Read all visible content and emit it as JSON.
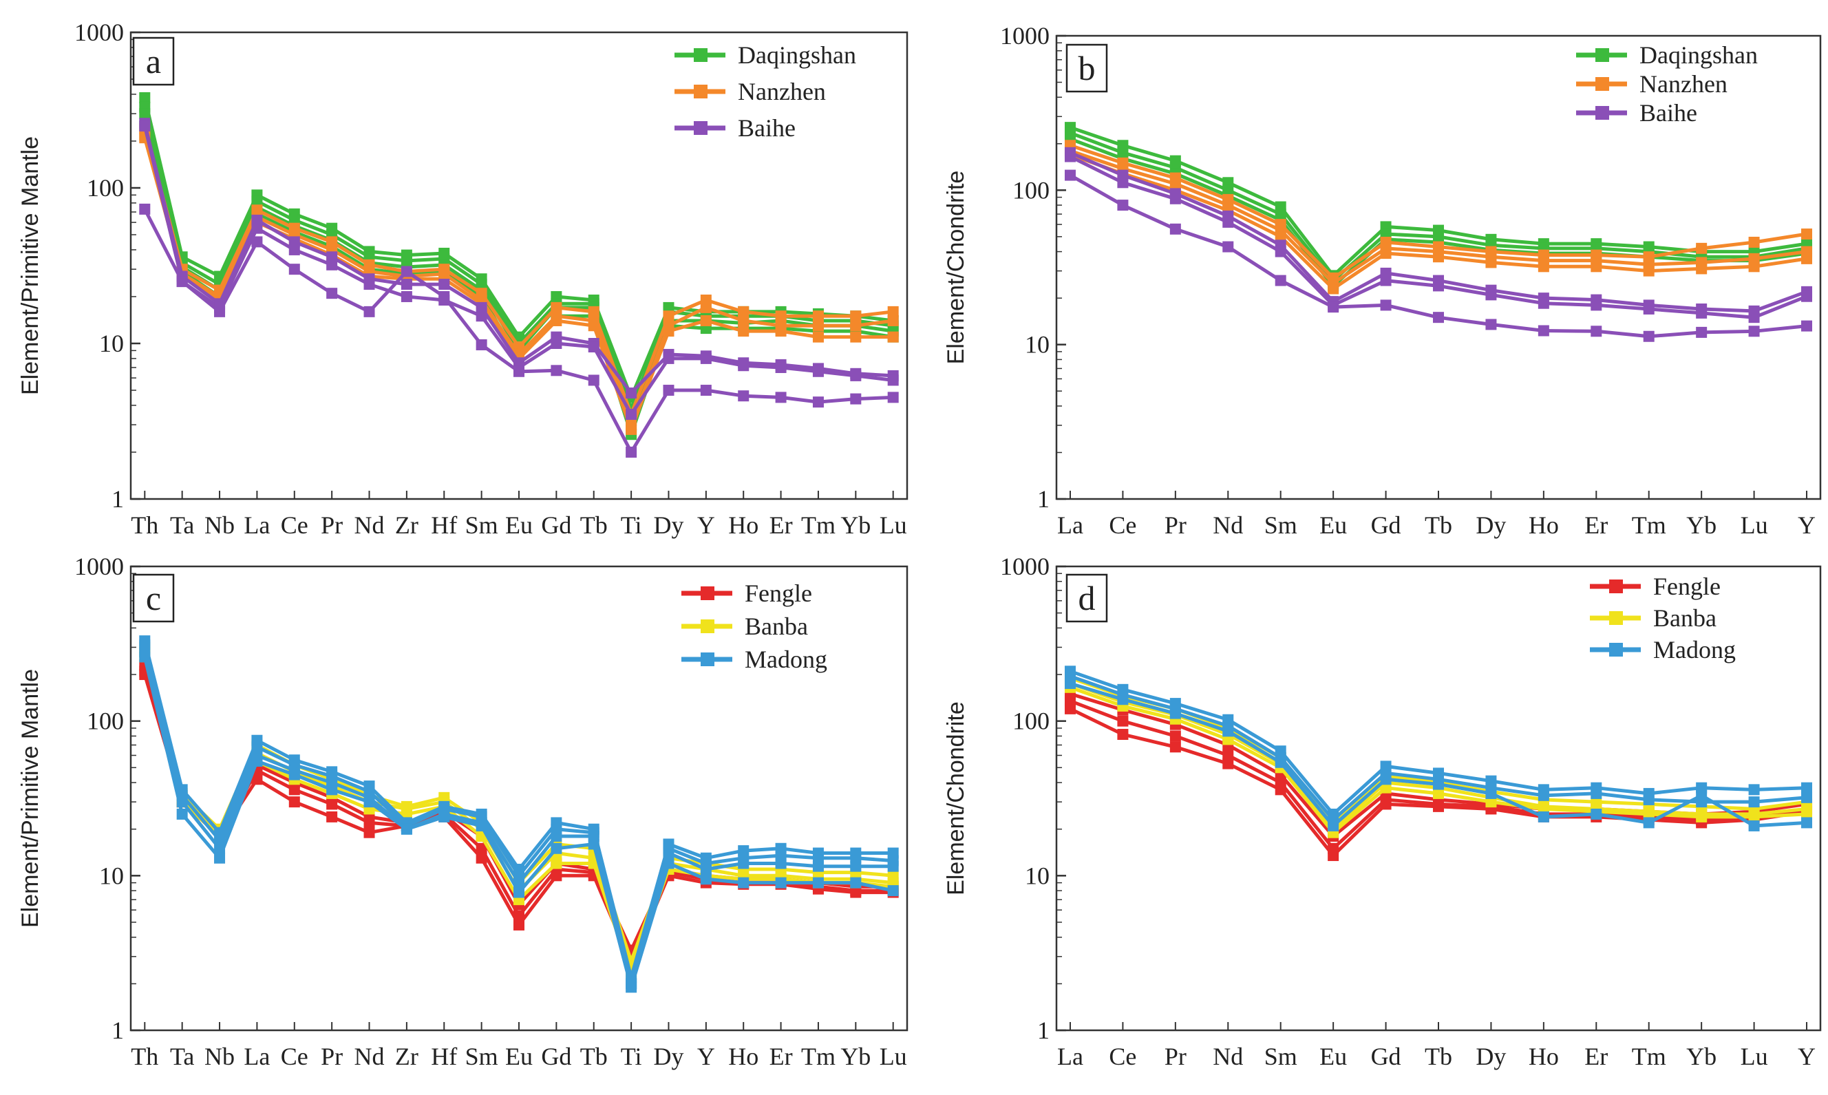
{
  "panel_letters": [
    "a",
    "b",
    "c",
    "d"
  ],
  "colors": {
    "Daqingshan": "#3dba3d",
    "Nanzhen": "#f4882a",
    "Baihe": "#8a4fb7",
    "Fengle": "#e52a2a",
    "Banba": "#f0e21c",
    "Madong": "#3a9ad6"
  },
  "chart_data": [
    {
      "type": "line",
      "panel": "a",
      "yscale": "log",
      "ylabel": "Element/Primitive Mantle",
      "xlabel": "",
      "ylim": [
        1,
        1000
      ],
      "y_ticks": [
        "1",
        "10",
        "100",
        "1000"
      ],
      "categories": [
        "Th",
        "Ta",
        "Nb",
        "La",
        "Ce",
        "Pr",
        "Nd",
        "Zr",
        "Hf",
        "Sm",
        "Eu",
        "Gd",
        "Tb",
        "Ti",
        "Dy",
        "Y",
        "Ho",
        "Er",
        "Tm",
        "Yb",
        "Lu"
      ],
      "legend": [
        "Daqingshan",
        "Nanzhen",
        "Baihe"
      ],
      "series": [
        {
          "name": "Daqingshan",
          "values": [
            380,
            36,
            27,
            90,
            68,
            55,
            39,
            37,
            38,
            26,
            11,
            20,
            19,
            4.5,
            17,
            16,
            16,
            16,
            15.5,
            15,
            14
          ]
        },
        {
          "name": "Daqingshan",
          "values": [
            330,
            33,
            24,
            82,
            62,
            50,
            36,
            34,
            35,
            24,
            10,
            18,
            18,
            3.8,
            16,
            15,
            15,
            15,
            14,
            14,
            13
          ]
        },
        {
          "name": "Daqingshan",
          "values": [
            300,
            31,
            22,
            75,
            57,
            46,
            33,
            31,
            32,
            22,
            9,
            17,
            17,
            3.2,
            14,
            14,
            13.5,
            14,
            13,
            13,
            12
          ]
        },
        {
          "name": "Daqingshan",
          "values": [
            250,
            29,
            20,
            68,
            52,
            42,
            30,
            28,
            29,
            20,
            8,
            15,
            15,
            2.6,
            13,
            12.5,
            12.5,
            12.5,
            12,
            12,
            11
          ]
        },
        {
          "name": "Nanzhen",
          "values": [
            240,
            30,
            22,
            72,
            55,
            45,
            32,
            29,
            30,
            21,
            9.5,
            17,
            16,
            3.5,
            15,
            19,
            16,
            15,
            15,
            15,
            16
          ]
        },
        {
          "name": "Nanzhen",
          "values": [
            210,
            28,
            20,
            65,
            50,
            40,
            29,
            27,
            28,
            19,
            8.5,
            15,
            14,
            3,
            13,
            17,
            14,
            13,
            13,
            13,
            14
          ]
        },
        {
          "name": "Nanzhen",
          "values": [
            220,
            27,
            19,
            60,
            47,
            37,
            27,
            26,
            26,
            18,
            8,
            14,
            13,
            2.8,
            12,
            14,
            12,
            12,
            11,
            11,
            11
          ]
        },
        {
          "name": "Baihe",
          "values": [
            260,
            27,
            18,
            62,
            45,
            36,
            26,
            24,
            24,
            17,
            7.5,
            11,
            10,
            4.8,
            8.5,
            8.3,
            7.5,
            7.3,
            6.9,
            6.4,
            6.2
          ]
        },
        {
          "name": "Baihe",
          "values": [
            250,
            25,
            17,
            55,
            40,
            32,
            24,
            20,
            19,
            15,
            7,
            10,
            9.5,
            3.5,
            8,
            8,
            7.2,
            7,
            6.6,
            6.2,
            5.8
          ]
        },
        {
          "name": "Baihe",
          "values": [
            73,
            25,
            16,
            45,
            30,
            21,
            16,
            29,
            20,
            9.8,
            6.6,
            6.7,
            5.8,
            2,
            5,
            5,
            4.6,
            4.5,
            4.2,
            4.4,
            4.5
          ]
        }
      ]
    },
    {
      "type": "line",
      "panel": "b",
      "yscale": "log",
      "ylabel": "Element/Chondrite",
      "xlabel": "",
      "ylim": [
        1,
        1000
      ],
      "y_ticks": [
        "1",
        "10",
        "100",
        "1000"
      ],
      "categories": [
        "La",
        "Ce",
        "Pr",
        "Nd",
        "Sm",
        "Eu",
        "Gd",
        "Tb",
        "Dy",
        "Ho",
        "Er",
        "Tm",
        "Yb",
        "Lu",
        "Y"
      ],
      "legend": [
        "Daqingshan",
        "Nanzhen",
        "Baihe"
      ],
      "series": [
        {
          "name": "Daqingshan",
          "values": [
            255,
            195,
            155,
            112,
            78,
            28,
            58,
            55,
            48,
            45,
            45,
            43,
            40,
            40,
            45
          ]
        },
        {
          "name": "Daqingshan",
          "values": [
            235,
            175,
            140,
            100,
            70,
            26,
            52,
            50,
            44,
            42,
            42,
            40,
            37,
            37,
            42
          ]
        },
        {
          "name": "Daqingshan",
          "values": [
            215,
            160,
            128,
            92,
            64,
            24,
            48,
            46,
            41,
            39,
            39,
            37,
            35,
            35,
            39
          ]
        },
        {
          "name": "Nanzhen",
          "values": [
            195,
            150,
            120,
            87,
            60,
            27,
            46,
            43,
            40,
            38,
            38,
            37,
            42,
            46,
            52
          ]
        },
        {
          "name": "Nanzhen",
          "values": [
            180,
            138,
            110,
            80,
            55,
            25,
            42,
            40,
            37,
            35,
            35,
            33,
            34,
            36,
            40
          ]
        },
        {
          "name": "Nanzhen",
          "values": [
            170,
            128,
            100,
            74,
            50,
            23,
            39,
            37,
            34,
            32,
            32,
            30,
            31,
            32,
            36
          ]
        },
        {
          "name": "Baihe",
          "values": [
            175,
            125,
            95,
            68,
            44,
            19,
            29,
            26,
            22.5,
            20,
            19.5,
            18,
            17,
            16.5,
            22
          ]
        },
        {
          "name": "Baihe",
          "values": [
            165,
            112,
            88,
            62,
            40,
            18,
            26,
            24,
            21,
            18.5,
            18,
            17,
            16,
            15,
            20.5
          ]
        },
        {
          "name": "Baihe",
          "values": [
            125,
            80,
            56,
            43,
            26,
            17.5,
            18,
            15,
            13.5,
            12.3,
            12.2,
            11.3,
            12,
            12.2,
            13.2
          ]
        }
      ]
    },
    {
      "type": "line",
      "panel": "c",
      "yscale": "log",
      "ylabel": "Element/Primitive Mantle",
      "xlabel": "",
      "ylim": [
        1,
        1000
      ],
      "y_ticks": [
        "1",
        "10",
        "100",
        "1000"
      ],
      "categories": [
        "Th",
        "Ta",
        "Nb",
        "La",
        "Ce",
        "Pr",
        "Nd",
        "Zr",
        "Hf",
        "Sm",
        "Eu",
        "Gd",
        "Tb",
        "Ti",
        "Dy",
        "Y",
        "Ho",
        "Er",
        "Tm",
        "Yb",
        "Lu"
      ],
      "legend": [
        "Fengle",
        "Banba",
        "Madong"
      ],
      "series": [
        {
          "name": "Fengle",
          "values": [
            230,
            32,
            19,
            52,
            40,
            32,
            24,
            22,
            26,
            18,
            6.5,
            12,
            11,
            3.3,
            11,
            10,
            9.5,
            9.5,
            9,
            8.5,
            8.5
          ]
        },
        {
          "name": "Fengle",
          "values": [
            200,
            30,
            18,
            48,
            36,
            29,
            22,
            21,
            25,
            15,
            5.5,
            11,
            10.5,
            3,
            10.5,
            9.5,
            9,
            9,
            8.5,
            8,
            8
          ]
        },
        {
          "name": "Fengle",
          "values": [
            210,
            30,
            18,
            42,
            30,
            24,
            19,
            21,
            24,
            13,
            4.8,
            10,
            10,
            2.7,
            10,
            9,
            8.8,
            8.8,
            8.2,
            7.8,
            7.8
          ]
        },
        {
          "name": "Banba",
          "values": [
            300,
            34,
            20,
            70,
            52,
            42,
            33,
            28,
            32,
            22,
            9,
            16,
            15,
            2.8,
            13,
            12,
            11,
            11,
            10.5,
            10.5,
            10
          ]
        },
        {
          "name": "Banba",
          "values": [
            280,
            32,
            19,
            62,
            47,
            38,
            30,
            27,
            30,
            20,
            8,
            14,
            13,
            2.5,
            12,
            11,
            10,
            10,
            9.5,
            9.5,
            9
          ]
        },
        {
          "name": "Banba",
          "values": [
            260,
            30,
            18,
            55,
            42,
            34,
            27,
            25,
            28,
            18,
            7,
            12,
            12,
            2.3,
            11,
            10,
            9.5,
            9.5,
            9,
            9,
            8.5
          ]
        },
        {
          "name": "Madong",
          "values": [
            330,
            36,
            19,
            75,
            56,
            47,
            38,
            22,
            28,
            25,
            11,
            22,
            20,
            2.2,
            16,
            13,
            14.5,
            15,
            14,
            14,
            14
          ]
        },
        {
          "name": "Madong",
          "values": [
            310,
            33,
            17,
            68,
            52,
            44,
            35,
            21,
            27,
            24,
            10,
            20,
            19,
            2,
            15,
            12,
            13,
            13.5,
            13,
            13,
            12.5
          ]
        },
        {
          "name": "Madong",
          "values": [
            280,
            30,
            15,
            60,
            48,
            40,
            32,
            20,
            25,
            22,
            9,
            18,
            18,
            2,
            14,
            11,
            12,
            12,
            11.5,
            11.5,
            11.5
          ]
        },
        {
          "name": "Madong",
          "values": [
            260,
            25,
            13,
            55,
            45,
            36,
            30,
            20,
            24,
            21,
            7.8,
            15,
            16,
            1.9,
            12,
            9.5,
            9,
            9,
            9,
            9,
            8
          ]
        }
      ]
    },
    {
      "type": "line",
      "panel": "d",
      "yscale": "log",
      "ylabel": "Element/Chondrite",
      "xlabel": "",
      "ylim": [
        1,
        1000
      ],
      "y_ticks": [
        "1",
        "10",
        "100",
        "1000"
      ],
      "categories": [
        "La",
        "Ce",
        "Pr",
        "Nd",
        "Sm",
        "Eu",
        "Gd",
        "Tb",
        "Dy",
        "Ho",
        "Er",
        "Tm",
        "Yb",
        "Lu",
        "Y"
      ],
      "legend": [
        "Fengle",
        "Banba",
        "Madong"
      ],
      "series": [
        {
          "name": "Fengle",
          "values": [
            150,
            118,
            95,
            70,
            45,
            18,
            34,
            31,
            29,
            27,
            27,
            26,
            25,
            26,
            29
          ]
        },
        {
          "name": "Fengle",
          "values": [
            135,
            100,
            80,
            60,
            40,
            15,
            31,
            29,
            28,
            25,
            25,
            24,
            23,
            24,
            27
          ]
        },
        {
          "name": "Fengle",
          "values": [
            120,
            82,
            68,
            53,
            36,
            13.5,
            29,
            28,
            27,
            24,
            24,
            23,
            22,
            23,
            26
          ]
        },
        {
          "name": "Banba",
          "values": [
            190,
            145,
            120,
            90,
            58,
            22,
            44,
            40,
            35,
            31,
            30,
            29,
            28,
            27,
            30
          ]
        },
        {
          "name": "Banba",
          "values": [
            175,
            133,
            110,
            82,
            53,
            20,
            40,
            37,
            32,
            28,
            27,
            26,
            25,
            25,
            27
          ]
        },
        {
          "name": "Banba",
          "values": [
            165,
            125,
            103,
            76,
            50,
            19,
            37,
            34,
            30,
            27,
            26,
            25,
            24,
            24,
            25
          ]
        },
        {
          "name": "Madong",
          "values": [
            210,
            160,
            130,
            102,
            64,
            25,
            51,
            46,
            41,
            36,
            37,
            34,
            37,
            36,
            37
          ]
        },
        {
          "name": "Madong",
          "values": [
            195,
            148,
            120,
            93,
            58,
            23,
            46,
            42,
            37,
            33,
            34,
            31,
            30,
            30,
            32
          ]
        },
        {
          "name": "Madong",
          "values": [
            175,
            138,
            112,
            86,
            54,
            21,
            42,
            39,
            34,
            24,
            25,
            22,
            33,
            21,
            22
          ]
        }
      ]
    }
  ]
}
